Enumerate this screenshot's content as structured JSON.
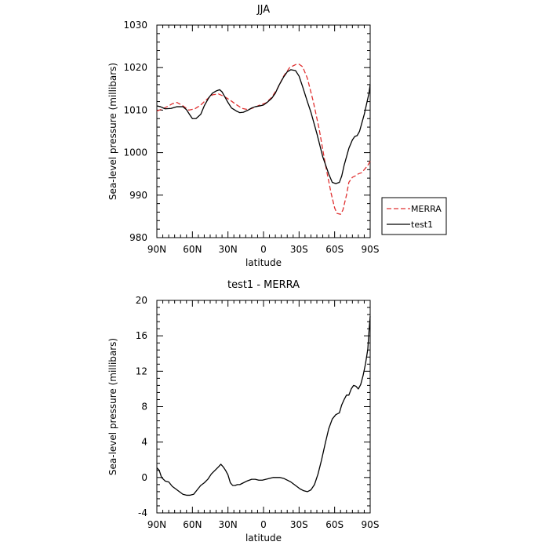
{
  "chart_data": [
    {
      "type": "line",
      "title": "JJA",
      "xlabel": "latitude",
      "ylabel": "Sea-level pressure (millibars)",
      "xlim": [
        90,
        -90
      ],
      "ylim": [
        980,
        1030
      ],
      "x_ticks": [
        90,
        60,
        30,
        0,
        -30,
        -60,
        -90
      ],
      "x_tick_labels": [
        "90N",
        "60N",
        "30N",
        "0",
        "30S",
        "60S",
        "90S"
      ],
      "y_ticks": [
        980,
        990,
        1000,
        1010,
        1020,
        1030
      ],
      "y_tick_labels": [
        "980",
        "990",
        "1000",
        "1010",
        "1020",
        "1030"
      ],
      "grid": false,
      "legend_position": "right",
      "series": [
        {
          "name": "MERRA",
          "color": "#e03030",
          "style": "dashed",
          "x": [
            90,
            85,
            80,
            77,
            73,
            68,
            63,
            58,
            53,
            48,
            43,
            38,
            33,
            28,
            23,
            18,
            13,
            8,
            3,
            -2,
            -7,
            -12,
            -17,
            -22,
            -27,
            -30,
            -33,
            -37,
            -42,
            -47,
            -52,
            -57,
            -60,
            -62,
            -65,
            -67,
            -70,
            -72,
            -75,
            -78,
            -80,
            -83,
            -85,
            -88,
            -90
          ],
          "y": [
            1009.8,
            1010.3,
            1011.0,
            1011.5,
            1011.8,
            1011.0,
            1010.0,
            1010.3,
            1011.2,
            1012.5,
            1013.6,
            1013.8,
            1013.2,
            1012.3,
            1011.3,
            1010.4,
            1010.1,
            1010.6,
            1011.2,
            1011.7,
            1013.0,
            1015.2,
            1018.0,
            1020.0,
            1020.7,
            1020.8,
            1020.2,
            1017.5,
            1012.0,
            1005.5,
            997.5,
            990.5,
            987.0,
            985.7,
            985.5,
            986.5,
            990.0,
            993.0,
            994.2,
            994.6,
            995.0,
            995.3,
            996.0,
            997.0,
            998.0
          ]
        },
        {
          "name": "test1",
          "color": "#000000",
          "style": "solid",
          "x": [
            90,
            87,
            83,
            78,
            73,
            68,
            65,
            62,
            60,
            57,
            53,
            50,
            46,
            43,
            40,
            37,
            35,
            33,
            30,
            27,
            23,
            20,
            17,
            13,
            10,
            7,
            3,
            0,
            -3,
            -7,
            -10,
            -13,
            -17,
            -20,
            -23,
            -27,
            -30,
            -33,
            -37,
            -40,
            -45,
            -50,
            -55,
            -58,
            -61,
            -64,
            -66,
            -68,
            -70,
            -72,
            -75,
            -77,
            -79,
            -81,
            -83,
            -85,
            -87,
            -89,
            -90
          ],
          "y": [
            1011.0,
            1010.8,
            1010.3,
            1010.4,
            1010.8,
            1010.8,
            1010.1,
            1008.8,
            1008.0,
            1008.0,
            1009.0,
            1011.0,
            1013.0,
            1014.0,
            1014.5,
            1014.8,
            1014.3,
            1013.3,
            1011.8,
            1010.5,
            1009.8,
            1009.4,
            1009.5,
            1010.0,
            1010.5,
            1010.8,
            1011.0,
            1011.2,
            1011.8,
            1012.8,
            1014.0,
            1015.8,
            1017.8,
            1019.0,
            1019.5,
            1019.3,
            1018.0,
            1015.5,
            1012.0,
            1009.5,
            1004.5,
            999.0,
            995.0,
            993.0,
            992.7,
            993.0,
            994.5,
            997.0,
            999.0,
            1001.0,
            1003.0,
            1003.8,
            1004.0,
            1005.0,
            1007.0,
            1009.0,
            1011.5,
            1014.0,
            1016.0
          ]
        }
      ]
    },
    {
      "type": "line",
      "title": "test1 - MERRA",
      "xlabel": "latitude",
      "ylabel": "Sea-level pressure (millibars)",
      "xlim": [
        90,
        -90
      ],
      "ylim": [
        -4,
        20
      ],
      "x_ticks": [
        90,
        60,
        30,
        0,
        -30,
        -60,
        -90
      ],
      "x_tick_labels": [
        "90N",
        "60N",
        "30N",
        "0",
        "30S",
        "60S",
        "90S"
      ],
      "y_ticks": [
        -4,
        0,
        4,
        8,
        12,
        16,
        20
      ],
      "y_tick_labels": [
        "-4",
        "0",
        "4",
        "8",
        "12",
        "16",
        "20"
      ],
      "grid": false,
      "series": [
        {
          "name": "test1",
          "color": "#000000",
          "style": "solid",
          "x": [
            90,
            88,
            86,
            83,
            80,
            77,
            74,
            71,
            68,
            65,
            62,
            59,
            56,
            53,
            50,
            47,
            44,
            41,
            38,
            36,
            34,
            32,
            30,
            28,
            26,
            24,
            22,
            20,
            17,
            14,
            10,
            7,
            4,
            1,
            -2,
            -5,
            -8,
            -11,
            -14,
            -17,
            -20,
            -23,
            -26,
            -29,
            -31,
            -34,
            -37,
            -40,
            -43,
            -46,
            -49,
            -52,
            -55,
            -58,
            -61,
            -64,
            -66,
            -68,
            -70,
            -72,
            -74,
            -76,
            -78,
            -80,
            -82,
            -84,
            -86,
            -88,
            -89,
            -90
          ],
          "y": [
            1.1,
            0.8,
            0.0,
            -0.4,
            -0.5,
            -1.0,
            -1.3,
            -1.6,
            -1.9,
            -2.0,
            -2.0,
            -1.9,
            -1.4,
            -0.9,
            -0.6,
            -0.2,
            0.4,
            0.8,
            1.2,
            1.5,
            1.2,
            0.8,
            0.3,
            -0.6,
            -0.9,
            -0.9,
            -0.8,
            -0.8,
            -0.6,
            -0.4,
            -0.2,
            -0.2,
            -0.3,
            -0.3,
            -0.2,
            -0.1,
            0.0,
            0.0,
            0.0,
            -0.1,
            -0.3,
            -0.5,
            -0.8,
            -1.1,
            -1.3,
            -1.5,
            -1.6,
            -1.4,
            -0.8,
            0.4,
            2.0,
            3.8,
            5.5,
            6.6,
            7.1,
            7.3,
            8.2,
            8.8,
            9.3,
            9.3,
            10.0,
            10.4,
            10.3,
            10.0,
            10.5,
            11.5,
            12.8,
            14.5,
            16.5,
            18.2
          ]
        }
      ]
    }
  ]
}
